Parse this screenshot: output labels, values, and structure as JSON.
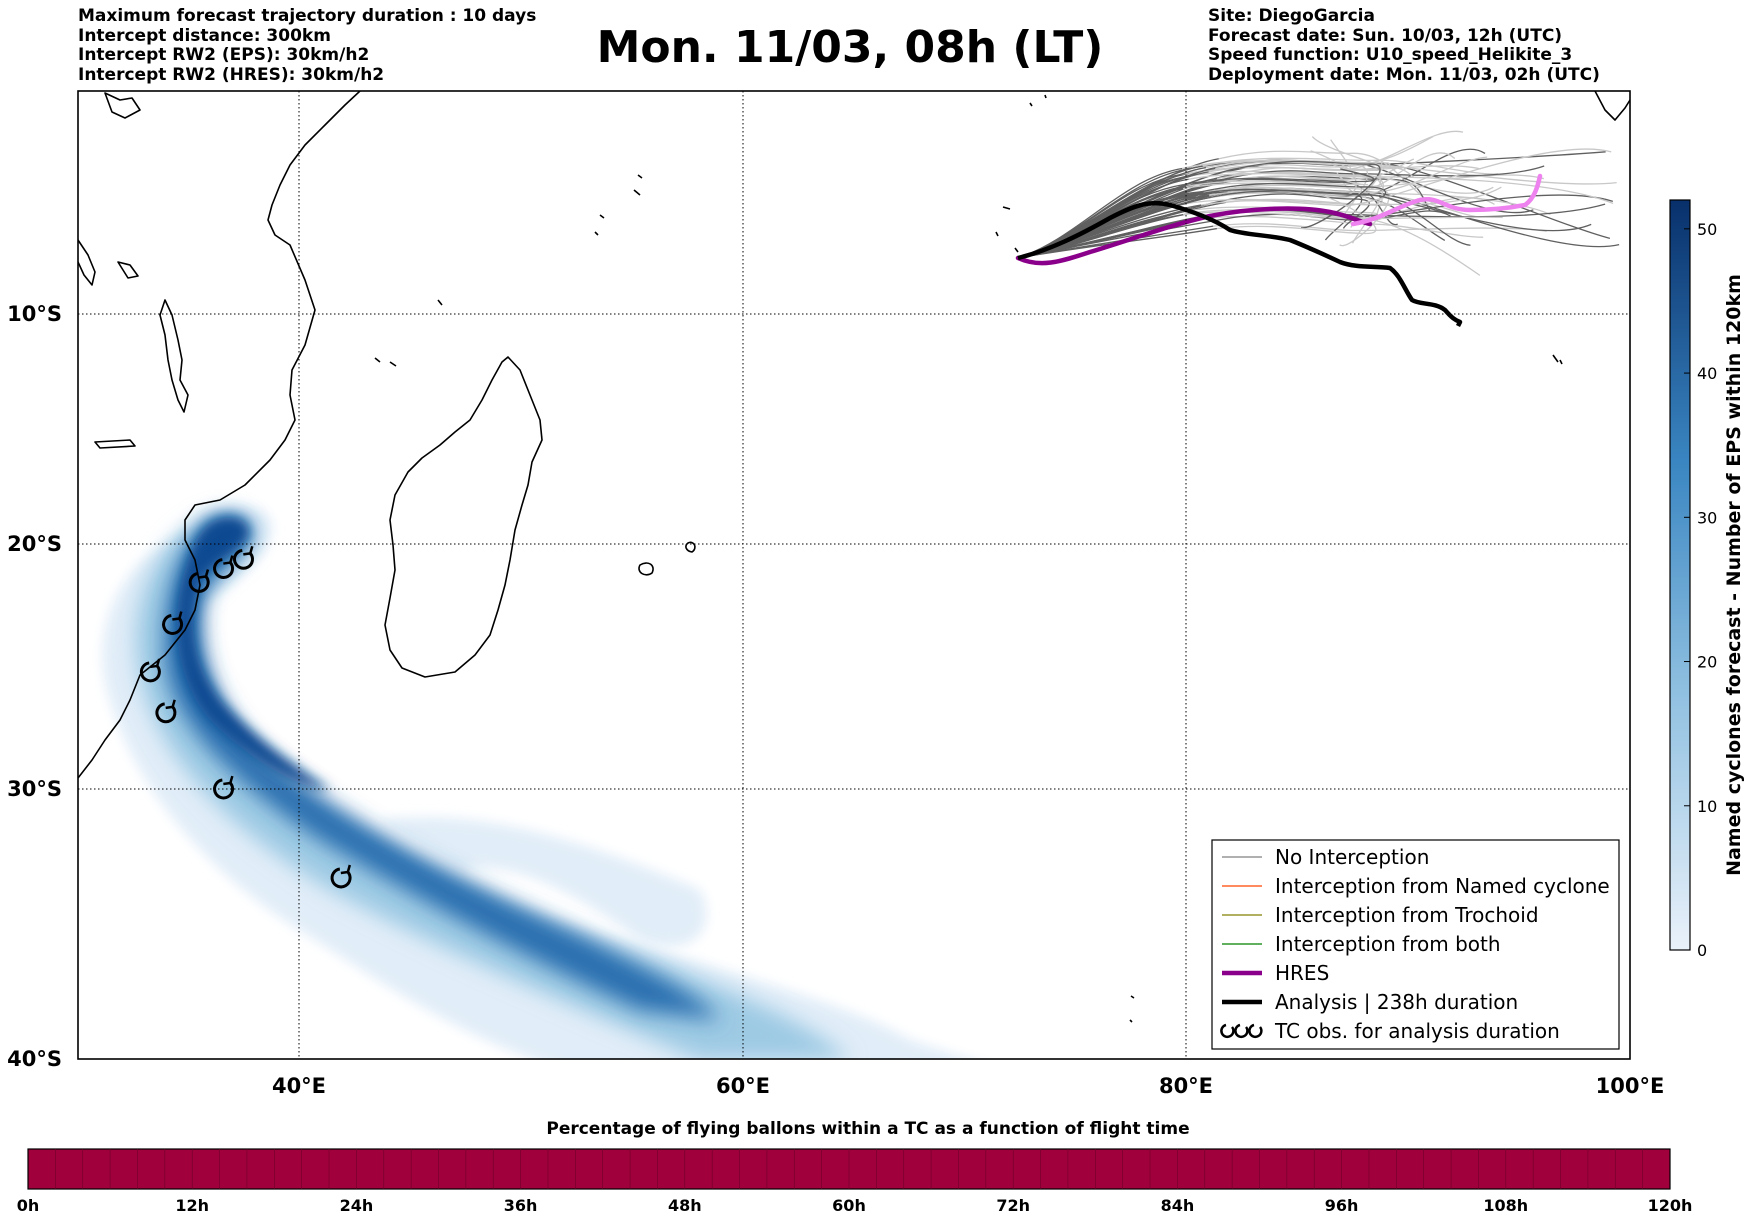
{
  "header_left": [
    "Maximum forecast trajectory duration : 10 days",
    "Intercept distance: 300km",
    "Intercept RW2 (EPS):  30km/h2",
    "Intercept RW2 (HRES): 30km/h2"
  ],
  "title": "Mon. 11/03, 08h (LT)",
  "header_right": [
    "Site: DiegoGarcia",
    "Forecast date: Sun. 10/03, 12h (UTC)",
    "Speed function: U10_speed_Helikite_3",
    "Deployment date: Mon. 11/03, 02h (UTC)"
  ],
  "map": {
    "lon_range": [
      30,
      100
    ],
    "lat_range": [
      -40,
      1
    ],
    "lon_ticks": [
      "40°E",
      "60°E",
      "80°E",
      "100°E"
    ],
    "lat_ticks": [
      "10°S",
      "20°S",
      "30°S",
      "40°S"
    ]
  },
  "colorbar": {
    "label": "Named cyclones forecast - Number of EPS within 120km",
    "ticks": [
      "0",
      "10",
      "20",
      "30",
      "40",
      "50"
    ],
    "range": [
      0,
      52
    ],
    "colors": [
      "#e3eef8",
      "#08306b"
    ]
  },
  "legend": {
    "items": [
      {
        "label": "No Interception",
        "color": "#808080",
        "style": "thin"
      },
      {
        "label": "Interception from Named cyclone",
        "color": "#ff4500",
        "style": "thin"
      },
      {
        "label": "Interception from Trochoid",
        "color": "#808000",
        "style": "thin"
      },
      {
        "label": "Interception from both",
        "color": "#008000",
        "style": "thin"
      },
      {
        "label": "HRES",
        "color": "#8b008b",
        "style": "thick"
      },
      {
        "label": "Analysis | 238h duration",
        "color": "#000000",
        "style": "thick"
      },
      {
        "label": "TC obs. for analysis duration",
        "color": "#000000",
        "style": "symbol"
      }
    ]
  },
  "bottom_bar": {
    "title": "Percentage of flying ballons within a TC as a function of flight time",
    "ticks": [
      "0h",
      "12h",
      "24h",
      "36h",
      "48h",
      "60h",
      "72h",
      "84h",
      "96h",
      "108h",
      "120h"
    ],
    "color": "#a0003c"
  },
  "tracks": {
    "hres_color": "#8b008b",
    "hres_ext_color": "#ee82ee",
    "analysis_color": "#000000",
    "ensemble_dark": "#606060",
    "ensemble_light": "#c8c8c8"
  },
  "tc_obs": [
    [
      37.5,
      -20.2
    ],
    [
      36.6,
      -20.6
    ],
    [
      35.5,
      -21.2
    ],
    [
      34.3,
      -23.0
    ],
    [
      33.3,
      -25.0
    ],
    [
      34.0,
      -26.7
    ],
    [
      36.6,
      -29.8
    ],
    [
      41.9,
      -33.3
    ]
  ]
}
